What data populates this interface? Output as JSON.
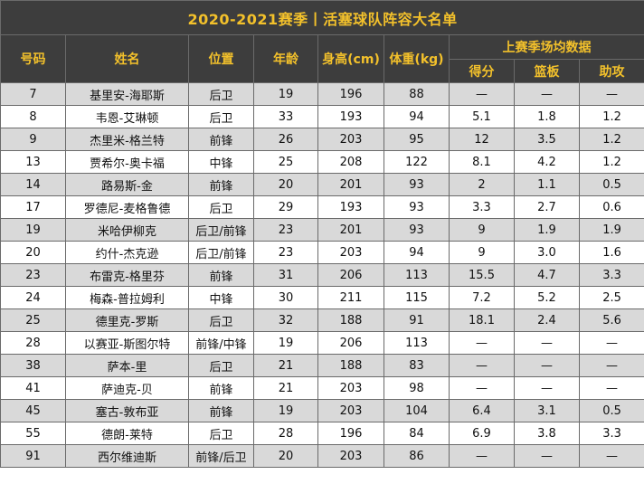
{
  "title": "2020-2021赛季丨活塞球队阵容大名单",
  "headers": {
    "number": "号码",
    "name": "姓名",
    "position": "位置",
    "age": "年龄",
    "height": "身高(cm)",
    "weight": "体重(kg)",
    "stats_group": "上赛季场均数据",
    "points": "得分",
    "rebounds": "篮板",
    "assists": "助攻"
  },
  "players": [
    {
      "number": "7",
      "name": "基里安-海耶斯",
      "position": "后卫",
      "age": "19",
      "height": "196",
      "weight": "88",
      "points": "—",
      "rebounds": "—",
      "assists": "—"
    },
    {
      "number": "8",
      "name": "韦恩-艾琳顿",
      "position": "后卫",
      "age": "33",
      "height": "193",
      "weight": "94",
      "points": "5.1",
      "rebounds": "1.8",
      "assists": "1.2"
    },
    {
      "number": "9",
      "name": "杰里米-格兰特",
      "position": "前锋",
      "age": "26",
      "height": "203",
      "weight": "95",
      "points": "12",
      "rebounds": "3.5",
      "assists": "1.2"
    },
    {
      "number": "13",
      "name": "贾希尔-奥卡福",
      "position": "中锋",
      "age": "25",
      "height": "208",
      "weight": "122",
      "points": "8.1",
      "rebounds": "4.2",
      "assists": "1.2"
    },
    {
      "number": "14",
      "name": "路易斯-金",
      "position": "前锋",
      "age": "20",
      "height": "201",
      "weight": "93",
      "points": "2",
      "rebounds": "1.1",
      "assists": "0.5"
    },
    {
      "number": "17",
      "name": "罗德尼-麦格鲁德",
      "position": "后卫",
      "age": "29",
      "height": "193",
      "weight": "93",
      "points": "3.3",
      "rebounds": "2.7",
      "assists": "0.6"
    },
    {
      "number": "19",
      "name": "米哈伊柳克",
      "position": "后卫/前锋",
      "age": "23",
      "height": "201",
      "weight": "93",
      "points": "9",
      "rebounds": "1.9",
      "assists": "1.9"
    },
    {
      "number": "20",
      "name": "约什-杰克逊",
      "position": "后卫/前锋",
      "age": "23",
      "height": "203",
      "weight": "94",
      "points": "9",
      "rebounds": "3.0",
      "assists": "1.6"
    },
    {
      "number": "23",
      "name": "布雷克-格里芬",
      "position": "前锋",
      "age": "31",
      "height": "206",
      "weight": "113",
      "points": "15.5",
      "rebounds": "4.7",
      "assists": "3.3"
    },
    {
      "number": "24",
      "name": "梅森-普拉姆利",
      "position": "中锋",
      "age": "30",
      "height": "211",
      "weight": "115",
      "points": "7.2",
      "rebounds": "5.2",
      "assists": "2.5"
    },
    {
      "number": "25",
      "name": "德里克-罗斯",
      "position": "后卫",
      "age": "32",
      "height": "188",
      "weight": "91",
      "points": "18.1",
      "rebounds": "2.4",
      "assists": "5.6"
    },
    {
      "number": "28",
      "name": "以赛亚-斯图尔特",
      "position": "前锋/中锋",
      "age": "19",
      "height": "206",
      "weight": "113",
      "points": "—",
      "rebounds": "—",
      "assists": "—"
    },
    {
      "number": "38",
      "name": "萨本-里",
      "position": "后卫",
      "age": "21",
      "height": "188",
      "weight": "83",
      "points": "—",
      "rebounds": "—",
      "assists": "—"
    },
    {
      "number": "41",
      "name": "萨迪克-贝",
      "position": "前锋",
      "age": "21",
      "height": "203",
      "weight": "98",
      "points": "—",
      "rebounds": "—",
      "assists": "—"
    },
    {
      "number": "45",
      "name": "塞古-敦布亚",
      "position": "前锋",
      "age": "19",
      "height": "203",
      "weight": "104",
      "points": "6.4",
      "rebounds": "3.1",
      "assists": "0.5"
    },
    {
      "number": "55",
      "name": "德朗-莱特",
      "position": "后卫",
      "age": "28",
      "height": "196",
      "weight": "84",
      "points": "6.9",
      "rebounds": "3.8",
      "assists": "3.3"
    },
    {
      "number": "91",
      "name": "西尔维迪斯",
      "position": "前锋/后卫",
      "age": "20",
      "height": "203",
      "weight": "86",
      "points": "—",
      "rebounds": "—",
      "assists": "—"
    }
  ],
  "colors": {
    "header_bg": "#3d3d3d",
    "header_text": "#f3c12b",
    "row_alt_bg": "#d9d9d9",
    "row_bg": "#ffffff",
    "border": "#6a6a6a"
  }
}
